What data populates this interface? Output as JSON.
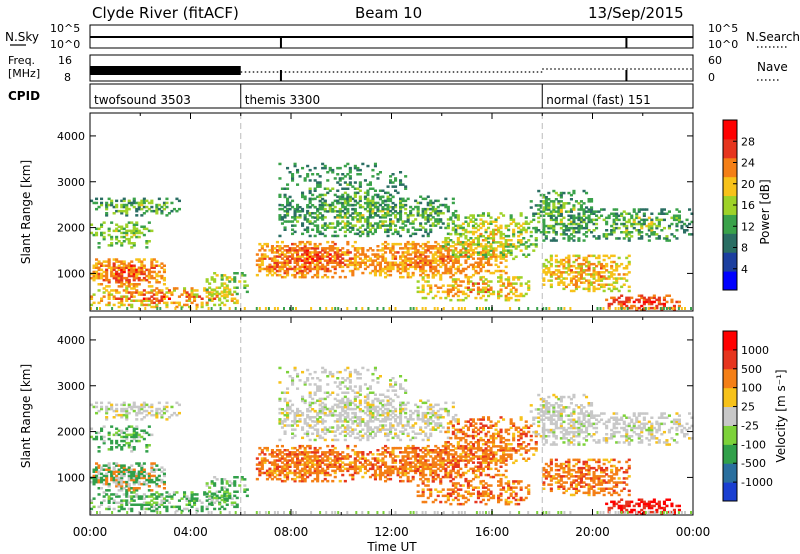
{
  "header": {
    "title": "Clyde River (fitACF)",
    "beam": "Beam 10",
    "date": "13/Sep/2015"
  },
  "panels": {
    "nsky": {
      "label": "N.Sky",
      "ticks": [
        "10^5",
        "10^0"
      ],
      "right_ticks": [
        "10^5",
        "10^0"
      ],
      "right_label": "N.Search"
    },
    "freq": {
      "label_line1": "Freq.",
      "label_line2": "[MHz]",
      "ticks": [
        "16",
        "8"
      ],
      "right_ticks": [
        "60",
        "0"
      ],
      "right_label": "Nave"
    },
    "cpid": {
      "label": "CPID",
      "segments": [
        {
          "name": "twofsound 3503",
          "start_hour": 0
        },
        {
          "name": "themis 3300",
          "start_hour": 6
        },
        {
          "name": "normal (fast) 151",
          "start_hour": 18
        }
      ]
    }
  },
  "chart_data": [
    {
      "type": "heatmap",
      "name": "power",
      "ylabel": "Slant Range [km]",
      "yticks": [
        "1000",
        "2000",
        "3000",
        "4000"
      ],
      "ylim": [
        180,
        4500
      ],
      "xlim": [
        0,
        24
      ],
      "colorbar_label": "Power [dB]",
      "colorbar_ticks": [
        "28",
        "24",
        "20",
        "16",
        "12",
        "8",
        "4"
      ],
      "colors": [
        "#0000ff",
        "#1c3f9f",
        "#2a6e63",
        "#3aa24a",
        "#9ed228",
        "#f7c21a",
        "#f47f16",
        "#e6351e",
        "#ff0000"
      ]
    },
    {
      "type": "heatmap",
      "name": "velocity",
      "ylabel": "Slant Range [km]",
      "yticks": [
        "1000",
        "2000",
        "3000",
        "4000"
      ],
      "ylim": [
        180,
        4500
      ],
      "xlim": [
        0,
        24
      ],
      "xticks": [
        "00:00",
        "04:00",
        "08:00",
        "12:00",
        "16:00",
        "20:00",
        "00:00"
      ],
      "xlabel": "Time UT",
      "colorbar_label": "Velocity [m s⁻¹]",
      "colorbar_ticks": [
        "1000",
        "500",
        "100",
        "25",
        "-25",
        "-100",
        "-500",
        "-1000"
      ],
      "colors": [
        "#1a3fd1",
        "#2a6f9e",
        "#31a04a",
        "#7dd23a",
        "#c8c8c8",
        "#f7c21a",
        "#f47f16",
        "#e6351e",
        "#ff0000"
      ]
    }
  ]
}
